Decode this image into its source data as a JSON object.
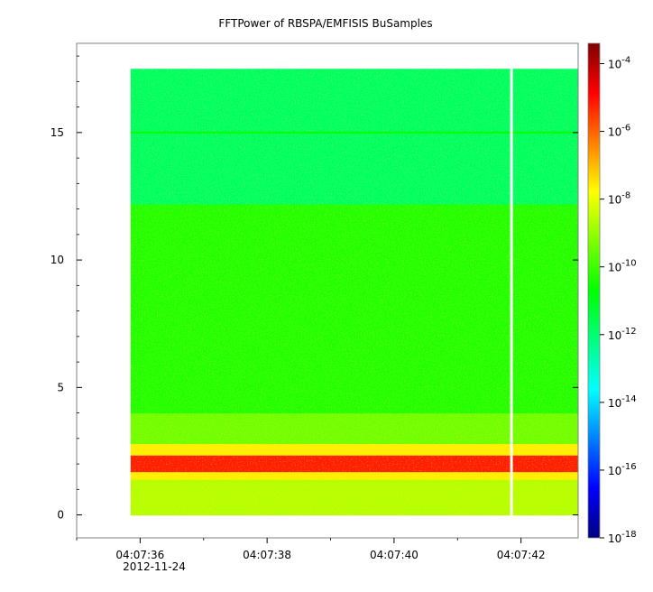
{
  "chart_data": {
    "type": "heatmap",
    "title": "FFTPower of RBSPA/EMFISIS  BuSamples",
    "xlabel": "",
    "ylabel": "",
    "x_tick_labels": [
      "04:07:36",
      "04:07:38",
      "04:07:40",
      "04:07:42"
    ],
    "x_date_label": "2012-11-24",
    "x_tick_seconds": [
      36,
      38,
      40,
      42
    ],
    "xlim_seconds": [
      35.0,
      42.9
    ],
    "data_x_range_seconds": [
      35.85,
      42.9
    ],
    "gap_seconds": 41.85,
    "y_ticks": [
      0,
      5,
      10,
      15
    ],
    "ylim": [
      -0.9,
      18.5
    ],
    "data_y_range": [
      0,
      17.5
    ],
    "colorbar": {
      "scale": "log",
      "min_exponent": -18,
      "max_exponent": -3.4,
      "tick_exponents": [
        -4,
        -6,
        -8,
        -10,
        -12,
        -14,
        -16,
        -18
      ],
      "tick_labels": [
        "10",
        "10",
        "10",
        "10",
        "10",
        "10",
        "10",
        "10"
      ],
      "tick_superscripts": [
        "-4",
        "-6",
        "-8",
        "-10",
        "-12",
        "-14",
        "-16",
        "-18"
      ],
      "colormap": [
        "#00007f",
        "#0000ff",
        "#007fff",
        "#00ffff",
        "#00ff7f",
        "#00ff00",
        "#7fff00",
        "#ffff00",
        "#ff7f00",
        "#ff0000",
        "#7f0000"
      ]
    },
    "spectral_bands": [
      {
        "y": [
          0.0,
          1.4
        ],
        "log_power": -8.6
      },
      {
        "y": [
          1.4,
          1.7
        ],
        "log_power": -7.6
      },
      {
        "y": [
          1.7,
          2.35
        ],
        "log_power": -5.2
      },
      {
        "y": [
          2.35,
          2.8
        ],
        "log_power": -7.6
      },
      {
        "y": [
          2.8,
          4.0
        ],
        "log_power": -9.4
      },
      {
        "y": [
          4.0,
          12.2
        ],
        "log_power": -10.3
      },
      {
        "y": [
          12.2,
          17.5
        ],
        "log_power": -11.8
      }
    ],
    "line_features": [
      {
        "y": 15.0,
        "log_power": -10.6
      }
    ]
  }
}
